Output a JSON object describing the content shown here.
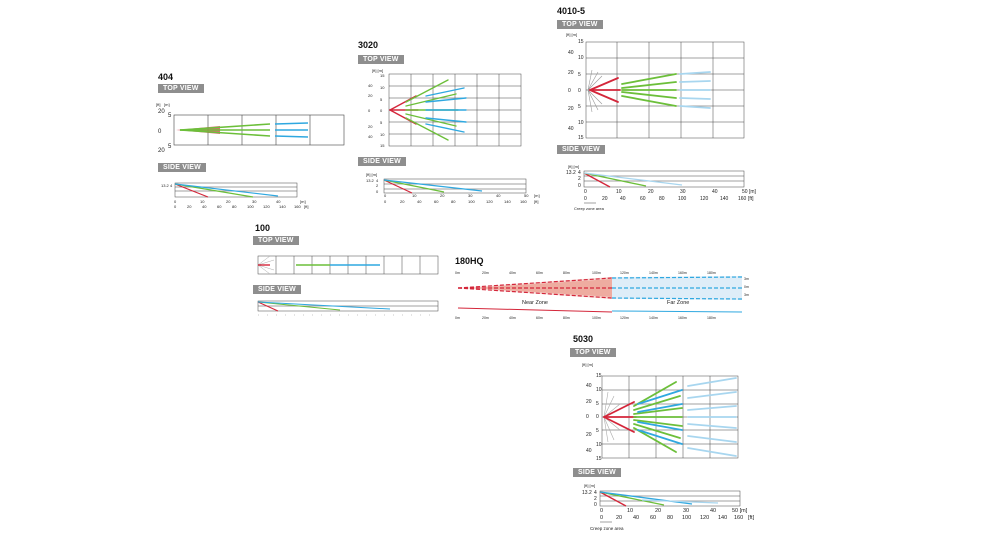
{
  "labels": {
    "top_view": "TOP VIEW",
    "side_view": "SIDE VIEW",
    "creep_zone": "Creep zone area"
  },
  "units": {
    "ft": "[ft]",
    "m": "[m]"
  },
  "models": {
    "m404": {
      "title": "404",
      "top_ft": [
        "20",
        "0",
        "20"
      ],
      "top_m": [
        "5",
        "5"
      ],
      "side_h": [
        "13.2",
        "4"
      ],
      "side_m": [
        "0",
        "10",
        "20",
        "30",
        "40",
        "[m]"
      ],
      "side_ft": [
        "0",
        "20",
        "40",
        "60",
        "80",
        "100",
        "120",
        "140",
        "160",
        "[ft]"
      ]
    },
    "m3020": {
      "title": "3020",
      "top_ft": [
        "40",
        "20",
        "0",
        "20",
        "40"
      ],
      "top_m": [
        "15",
        "10",
        "5",
        "0",
        "5",
        "10",
        "15"
      ],
      "side_h": [
        "13.2",
        "4",
        "2",
        "0"
      ],
      "side_m": [
        "0",
        "10",
        "20",
        "30",
        "40",
        "50"
      ],
      "side_ft": [
        "0",
        "20",
        "40",
        "60",
        "80",
        "100",
        "120",
        "140",
        "160"
      ]
    },
    "m4010": {
      "title": "4010-5",
      "top_ft": [
        "40",
        "20",
        "0",
        "20",
        "40"
      ],
      "top_m": [
        "15",
        "10",
        "5",
        "0",
        "5",
        "10",
        "15"
      ],
      "side_h": [
        "13.2",
        "4",
        "2",
        "0"
      ],
      "side_m": [
        "0",
        "10",
        "20",
        "30",
        "40",
        "50 [m]"
      ],
      "side_ft": [
        "0",
        "20",
        "40",
        "60",
        "80",
        "100",
        "120",
        "140",
        "160",
        "[ft]"
      ]
    },
    "m100": {
      "title": "100"
    },
    "m180": {
      "title": "180HQ",
      "near": "Near Zone",
      "far": "Far Zone",
      "dist": [
        "0m",
        "20m",
        "40m",
        "60m",
        "80m",
        "100m",
        "120m",
        "140m",
        "160m",
        "180m"
      ],
      "widths": [
        "3m",
        "0m",
        "3m"
      ]
    },
    "m5030": {
      "title": "5030",
      "top_ft": [
        "40",
        "20",
        "0",
        "20",
        "40"
      ],
      "top_m": [
        "15",
        "10",
        "5",
        "0",
        "5",
        "10",
        "15"
      ],
      "side_h": [
        "13.2",
        "4",
        "2",
        "0"
      ],
      "side_m": [
        "0",
        "10",
        "20",
        "30",
        "40",
        "50 [m]"
      ],
      "side_ft": [
        "0",
        "20",
        "40",
        "60",
        "80",
        "100",
        "120",
        "140",
        "160",
        "[ft]"
      ]
    }
  },
  "colors": {
    "red": "#d4263a",
    "green": "#6cbf3a",
    "blue": "#2fa8e0",
    "lightblue": "#a8d6ef",
    "grid": "#444444",
    "badge": "#8e8e8e"
  }
}
